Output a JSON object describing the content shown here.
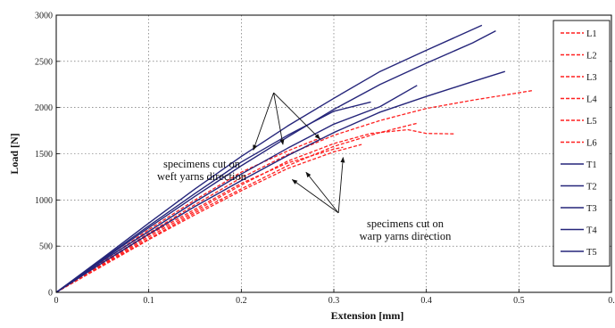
{
  "chart_data": {
    "type": "line",
    "title": "",
    "xlabel": "Extension [mm]",
    "ylabel": "Load [N]",
    "xlim": [
      0,
      0.6
    ],
    "ylim": [
      0,
      3000
    ],
    "grid": true,
    "legend_position": "right",
    "x_ticks": [
      "0",
      "0.1",
      "0.2",
      "0.3",
      "0.4",
      "0.5",
      "0."
    ],
    "y_ticks": [
      "0",
      "500",
      "1000",
      "1500",
      "2000",
      "2500",
      "3000"
    ],
    "series": [
      {
        "name": "L1",
        "color": "#ff2020",
        "dash": "dashed",
        "points": [
          [
            0,
            0
          ],
          [
            0.05,
            320
          ],
          [
            0.1,
            640
          ],
          [
            0.15,
            950
          ],
          [
            0.2,
            1240
          ],
          [
            0.25,
            1490
          ],
          [
            0.3,
            1700
          ],
          [
            0.35,
            1860
          ],
          [
            0.4,
            1990
          ],
          [
            0.45,
            2080
          ],
          [
            0.5,
            2160
          ],
          [
            0.515,
            2185
          ]
        ]
      },
      {
        "name": "L2",
        "color": "#ff2020",
        "dash": "dashed",
        "points": [
          [
            0,
            0
          ],
          [
            0.05,
            300
          ],
          [
            0.1,
            600
          ],
          [
            0.15,
            880
          ],
          [
            0.2,
            1160
          ],
          [
            0.25,
            1420
          ],
          [
            0.3,
            1610
          ],
          [
            0.34,
            1720
          ],
          [
            0.38,
            1760
          ],
          [
            0.4,
            1720
          ],
          [
            0.43,
            1715
          ]
        ]
      },
      {
        "name": "L3",
        "color": "#ff2020",
        "dash": "dashed",
        "points": [
          [
            0,
            0
          ],
          [
            0.05,
            290
          ],
          [
            0.1,
            580
          ],
          [
            0.15,
            860
          ],
          [
            0.2,
            1120
          ],
          [
            0.25,
            1370
          ],
          [
            0.3,
            1580
          ],
          [
            0.35,
            1730
          ],
          [
            0.39,
            1830
          ]
        ]
      },
      {
        "name": "L4",
        "color": "#ff2020",
        "dash": "dashed",
        "points": [
          [
            0,
            0
          ],
          [
            0.05,
            310
          ],
          [
            0.1,
            620
          ],
          [
            0.15,
            900
          ],
          [
            0.2,
            1180
          ],
          [
            0.25,
            1400
          ],
          [
            0.3,
            1550
          ],
          [
            0.31,
            1570
          ]
        ]
      },
      {
        "name": "L5",
        "color": "#ff2020",
        "dash": "dashed",
        "points": [
          [
            0,
            0
          ],
          [
            0.05,
            330
          ],
          [
            0.1,
            680
          ],
          [
            0.15,
            1000
          ],
          [
            0.2,
            1300
          ],
          [
            0.25,
            1530
          ],
          [
            0.28,
            1650
          ],
          [
            0.29,
            1670
          ]
        ]
      },
      {
        "name": "L6",
        "color": "#ff2020",
        "dash": "dashed",
        "points": [
          [
            0,
            0
          ],
          [
            0.05,
            285
          ],
          [
            0.1,
            570
          ],
          [
            0.15,
            840
          ],
          [
            0.2,
            1100
          ],
          [
            0.25,
            1340
          ],
          [
            0.3,
            1520
          ],
          [
            0.33,
            1600
          ]
        ]
      },
      {
        "name": "T1",
        "color": "#25257a",
        "dash": "solid",
        "points": [
          [
            0,
            0
          ],
          [
            0.05,
            370
          ],
          [
            0.1,
            750
          ],
          [
            0.15,
            1120
          ],
          [
            0.2,
            1470
          ],
          [
            0.25,
            1800
          ],
          [
            0.3,
            2100
          ],
          [
            0.35,
            2390
          ],
          [
            0.4,
            2620
          ],
          [
            0.46,
            2890
          ]
        ]
      },
      {
        "name": "T2",
        "color": "#25257a",
        "dash": "solid",
        "points": [
          [
            0,
            0
          ],
          [
            0.05,
            350
          ],
          [
            0.1,
            700
          ],
          [
            0.15,
            1040
          ],
          [
            0.2,
            1370
          ],
          [
            0.25,
            1680
          ],
          [
            0.3,
            1980
          ],
          [
            0.35,
            2250
          ],
          [
            0.4,
            2480
          ],
          [
            0.45,
            2700
          ],
          [
            0.475,
            2830
          ]
        ]
      },
      {
        "name": "T3",
        "color": "#25257a",
        "dash": "solid",
        "points": [
          [
            0,
            0
          ],
          [
            0.05,
            340
          ],
          [
            0.1,
            660
          ],
          [
            0.15,
            980
          ],
          [
            0.2,
            1280
          ],
          [
            0.25,
            1560
          ],
          [
            0.3,
            1820
          ],
          [
            0.35,
            2010
          ],
          [
            0.39,
            2240
          ]
        ]
      },
      {
        "name": "T4",
        "color": "#25257a",
        "dash": "solid",
        "points": [
          [
            0,
            0
          ],
          [
            0.05,
            320
          ],
          [
            0.1,
            630
          ],
          [
            0.15,
            930
          ],
          [
            0.2,
            1210
          ],
          [
            0.25,
            1480
          ],
          [
            0.3,
            1730
          ],
          [
            0.35,
            1950
          ],
          [
            0.4,
            2120
          ],
          [
            0.45,
            2280
          ],
          [
            0.485,
            2390
          ]
        ]
      },
      {
        "name": "T5",
        "color": "#25257a",
        "dash": "solid",
        "points": [
          [
            0,
            0
          ],
          [
            0.05,
            360
          ],
          [
            0.1,
            720
          ],
          [
            0.15,
            1070
          ],
          [
            0.2,
            1410
          ],
          [
            0.25,
            1700
          ],
          [
            0.3,
            1960
          ],
          [
            0.34,
            2060
          ]
        ]
      }
    ],
    "annotations": [
      {
        "lines": [
          "specimens cut on",
          "weft yarns direction"
        ],
        "arrow_tail": [
          0.235,
          2160
        ],
        "arrow_heads": [
          [
            0.213,
            1540
          ],
          [
            0.245,
            1600
          ],
          [
            0.285,
            1660
          ]
        ]
      },
      {
        "lines": [
          "specimens cut on",
          "warp yarns direction"
        ],
        "arrow_tail": [
          0.305,
          860
        ],
        "arrow_heads": [
          [
            0.255,
            1220
          ],
          [
            0.27,
            1300
          ],
          [
            0.31,
            1460
          ]
        ]
      }
    ]
  }
}
